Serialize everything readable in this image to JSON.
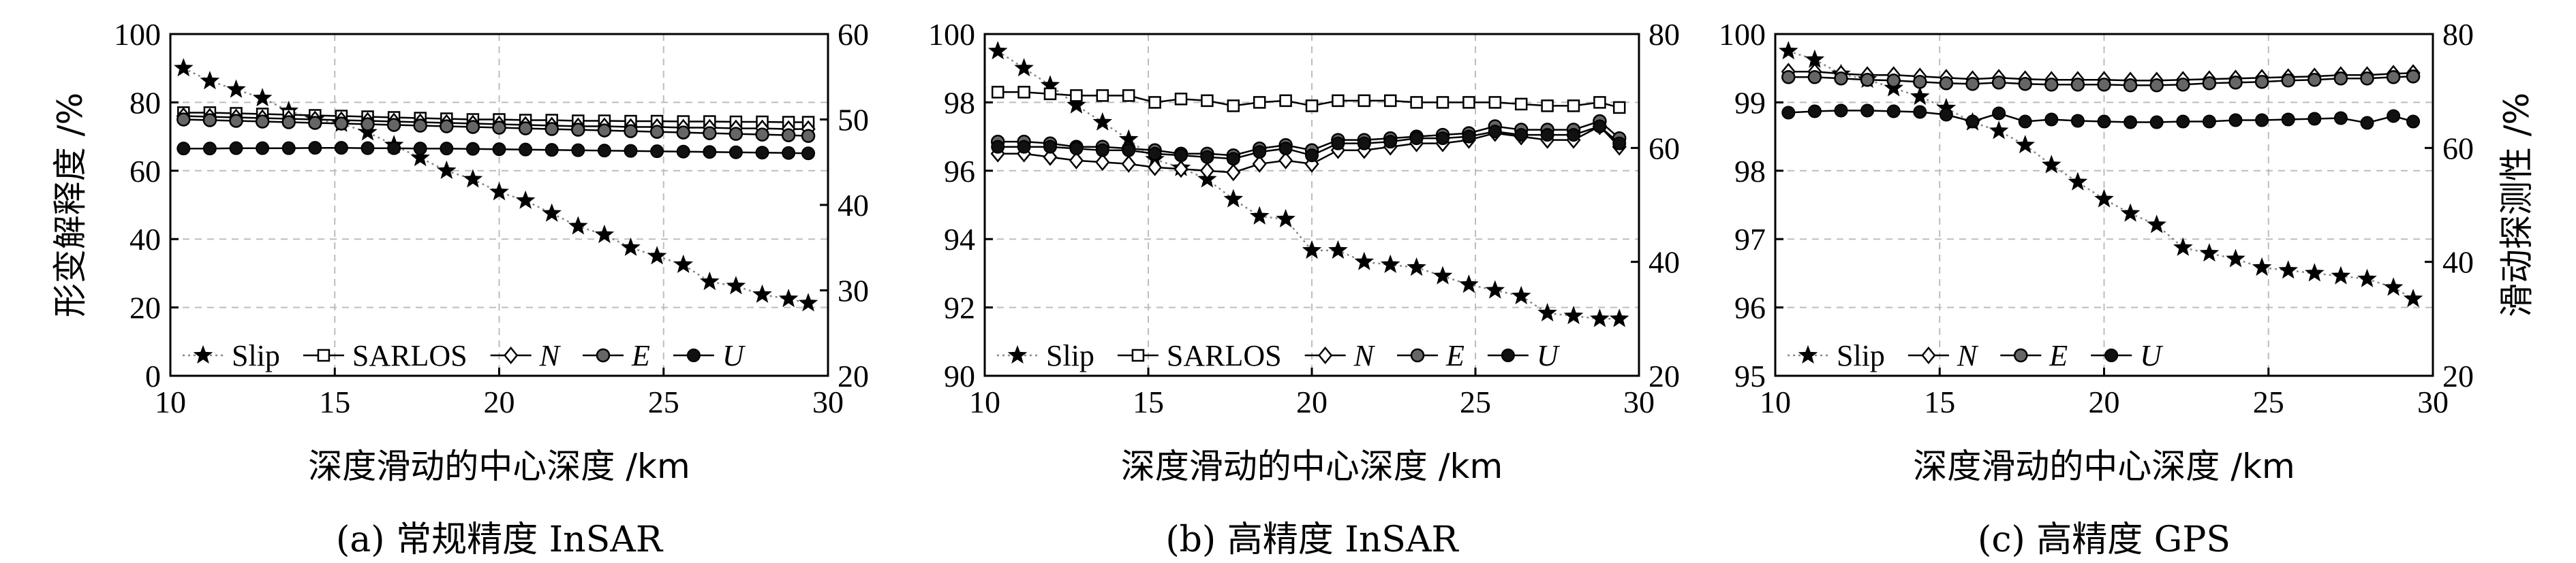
{
  "chart_data": [
    {
      "type": "line",
      "caption": "(a) 常规精度 InSAR",
      "xlabel": "深度滑动的中心深度 /km",
      "ylabel": "形变解释度 /%",
      "ylabel_right": "",
      "xlim": [
        10,
        30
      ],
      "ylim": [
        0,
        100
      ],
      "y2lim": [
        20,
        60
      ],
      "xticks": [
        10,
        15,
        20,
        25,
        30
      ],
      "yticks": [
        0,
        20,
        40,
        60,
        80,
        100
      ],
      "y2ticks": [
        20,
        30,
        40,
        50,
        60
      ],
      "x": [
        10.4,
        11.2,
        12.0,
        12.8,
        13.6,
        14.4,
        15.2,
        16.0,
        16.8,
        17.6,
        18.4,
        19.2,
        20.0,
        20.8,
        21.6,
        22.4,
        23.2,
        24.0,
        24.8,
        25.6,
        26.4,
        27.2,
        28.0,
        28.8,
        29.4
      ],
      "legend_loc": "lower-left",
      "series": [
        {
          "name": "Slip",
          "axis": "right",
          "marker": "star",
          "style": "dotted",
          "values": [
            56,
            54.5,
            53.5,
            52.5,
            51,
            50,
            49.5,
            48.5,
            47,
            45.5,
            44,
            43,
            41.5,
            40.5,
            39,
            37.5,
            36.5,
            35,
            34,
            33,
            31,
            30.5,
            29.5,
            29,
            28.5
          ]
        },
        {
          "name": "SARLOS",
          "axis": "left",
          "marker": "square",
          "style": "solid",
          "values": [
            77,
            77,
            76.8,
            76.6,
            76.4,
            76.2,
            76,
            75.8,
            75.6,
            75.4,
            75.2,
            75,
            75,
            74.8,
            74.8,
            74.6,
            74.6,
            74.5,
            74.5,
            74.4,
            74.4,
            74.3,
            74.3,
            74.2,
            74.2
          ]
        },
        {
          "name": "N",
          "axis": "left",
          "marker": "diamond",
          "style": "solid",
          "values": [
            76,
            75.8,
            75.6,
            75.4,
            75.2,
            75,
            74.8,
            74.6,
            74.4,
            74.2,
            74,
            73.8,
            73.6,
            73.4,
            73.2,
            73,
            73,
            72.8,
            72.8,
            72.6,
            72.6,
            72.4,
            72.4,
            72.2,
            72.2
          ]
        },
        {
          "name": "E",
          "axis": "left",
          "marker": "circle-half",
          "style": "solid",
          "values": [
            75,
            74.8,
            74.6,
            74.4,
            74.2,
            74,
            73.8,
            73.6,
            73.4,
            73.2,
            73,
            72.8,
            72.6,
            72.4,
            72.2,
            72,
            71.8,
            71.6,
            71.4,
            71.2,
            71,
            70.8,
            70.6,
            70.4,
            70.2
          ]
        },
        {
          "name": "U",
          "axis": "left",
          "marker": "circle",
          "style": "solid",
          "values": [
            66.5,
            66.5,
            66.6,
            66.6,
            66.6,
            66.7,
            66.7,
            66.6,
            66.6,
            66.5,
            66.5,
            66.4,
            66.3,
            66.2,
            66.1,
            66.0,
            65.9,
            65.8,
            65.7,
            65.6,
            65.5,
            65.4,
            65.3,
            65.2,
            65.1
          ]
        }
      ]
    },
    {
      "type": "line",
      "caption": "(b) 高精度 InSAR",
      "xlabel": "深度滑动的中心深度 /km",
      "ylabel": "",
      "ylabel_right": "",
      "xlim": [
        10,
        30
      ],
      "ylim": [
        90,
        100
      ],
      "y2lim": [
        20,
        80
      ],
      "xticks": [
        10,
        15,
        20,
        25,
        30
      ],
      "yticks": [
        90,
        92,
        94,
        96,
        98,
        100
      ],
      "y2ticks": [
        20,
        40,
        60,
        80
      ],
      "x": [
        10.4,
        11.2,
        12.0,
        12.8,
        13.6,
        14.4,
        15.2,
        16.0,
        16.8,
        17.6,
        18.4,
        19.2,
        20.0,
        20.8,
        21.6,
        22.4,
        23.2,
        24.0,
        24.8,
        25.6,
        26.4,
        27.2,
        28.0,
        28.8,
        29.4
      ],
      "legend_loc": "lower-left",
      "series": [
        {
          "name": "Slip",
          "axis": "right",
          "marker": "star",
          "style": "dotted",
          "values": [
            77,
            74,
            71,
            67.5,
            64.5,
            61.5,
            58,
            56.5,
            54.5,
            51,
            48,
            47.5,
            42,
            42,
            40,
            39.5,
            39,
            37.5,
            36,
            35,
            34,
            31,
            30.5,
            30,
            30
          ]
        },
        {
          "name": "SARLOS",
          "axis": "left",
          "marker": "square",
          "style": "solid",
          "values": [
            98.3,
            98.3,
            98.25,
            98.2,
            98.2,
            98.2,
            98.0,
            98.1,
            98.05,
            97.9,
            98.0,
            98.05,
            97.9,
            98.05,
            98.05,
            98.05,
            98.0,
            98.0,
            98.0,
            98.0,
            97.95,
            97.9,
            97.9,
            98.0,
            97.85
          ]
        },
        {
          "name": "N",
          "axis": "left",
          "marker": "diamond",
          "style": "solid",
          "values": [
            96.5,
            96.5,
            96.4,
            96.3,
            96.25,
            96.2,
            96.1,
            96.05,
            96.0,
            95.95,
            96.2,
            96.3,
            96.2,
            96.6,
            96.6,
            96.7,
            96.8,
            96.8,
            96.9,
            97.1,
            97.0,
            96.9,
            96.9,
            97.3,
            96.7
          ]
        },
        {
          "name": "E",
          "axis": "left",
          "marker": "circle-half",
          "style": "solid",
          "values": [
            96.85,
            96.85,
            96.8,
            96.7,
            96.7,
            96.65,
            96.6,
            96.5,
            96.5,
            96.45,
            96.65,
            96.75,
            96.6,
            96.9,
            96.9,
            96.95,
            97.0,
            97.05,
            97.1,
            97.3,
            97.2,
            97.2,
            97.2,
            97.45,
            96.95
          ]
        },
        {
          "name": "U",
          "axis": "left",
          "marker": "circle",
          "style": "solid",
          "values": [
            96.7,
            96.7,
            96.7,
            96.65,
            96.6,
            96.6,
            96.5,
            96.45,
            96.4,
            96.35,
            96.55,
            96.65,
            96.45,
            96.8,
            96.8,
            96.85,
            96.95,
            96.95,
            97.0,
            97.15,
            97.05,
            97.05,
            97.05,
            97.3,
            96.8
          ]
        }
      ]
    },
    {
      "type": "line",
      "caption": "(c) 高精度 GPS",
      "xlabel": "深度滑动的中心深度 /km",
      "ylabel": "",
      "ylabel_right": "滑动探测性 /%",
      "xlim": [
        10,
        30
      ],
      "ylim": [
        95,
        100
      ],
      "y2lim": [
        20,
        80
      ],
      "xticks": [
        10,
        15,
        20,
        25,
        30
      ],
      "yticks": [
        95,
        96,
        97,
        98,
        99,
        100
      ],
      "y2ticks": [
        20,
        40,
        60,
        80
      ],
      "x": [
        10.4,
        11.2,
        12.0,
        12.8,
        13.6,
        14.4,
        15.2,
        16.0,
        16.8,
        17.6,
        18.4,
        19.2,
        20.0,
        20.8,
        21.6,
        22.4,
        23.2,
        24.0,
        24.8,
        25.6,
        26.4,
        27.2,
        28.0,
        28.8,
        29.4
      ],
      "legend_loc": "lower-left",
      "series": [
        {
          "name": "Slip",
          "axis": "right",
          "marker": "star",
          "style": "dotted",
          "values": [
            77,
            75.5,
            73,
            72,
            70.5,
            69,
            67,
            64.5,
            63,
            60.5,
            57,
            54,
            51,
            48.5,
            46.5,
            42.5,
            41.5,
            40.5,
            39,
            38.5,
            38,
            37.5,
            37,
            35.5,
            33.5
          ]
        },
        {
          "name": "N",
          "axis": "left",
          "marker": "diamond",
          "style": "solid",
          "values": [
            99.45,
            99.45,
            99.42,
            99.4,
            99.4,
            99.38,
            99.36,
            99.34,
            99.36,
            99.34,
            99.33,
            99.33,
            99.33,
            99.32,
            99.32,
            99.33,
            99.34,
            99.35,
            99.36,
            99.37,
            99.38,
            99.4,
            99.4,
            99.42,
            99.43
          ]
        },
        {
          "name": "E",
          "axis": "left",
          "marker": "circle-half",
          "style": "solid",
          "values": [
            99.37,
            99.37,
            99.35,
            99.33,
            99.32,
            99.3,
            99.28,
            99.27,
            99.29,
            99.27,
            99.26,
            99.26,
            99.26,
            99.25,
            99.25,
            99.26,
            99.28,
            99.29,
            99.3,
            99.32,
            99.33,
            99.35,
            99.35,
            99.37,
            99.38
          ]
        },
        {
          "name": "U",
          "axis": "left",
          "marker": "circle",
          "style": "solid",
          "values": [
            98.85,
            98.87,
            98.88,
            98.88,
            98.87,
            98.86,
            98.82,
            98.72,
            98.84,
            98.72,
            98.75,
            98.73,
            98.72,
            98.71,
            98.71,
            98.72,
            98.72,
            98.74,
            98.74,
            98.75,
            98.76,
            98.77,
            98.7,
            98.8,
            98.72
          ]
        }
      ]
    }
  ]
}
